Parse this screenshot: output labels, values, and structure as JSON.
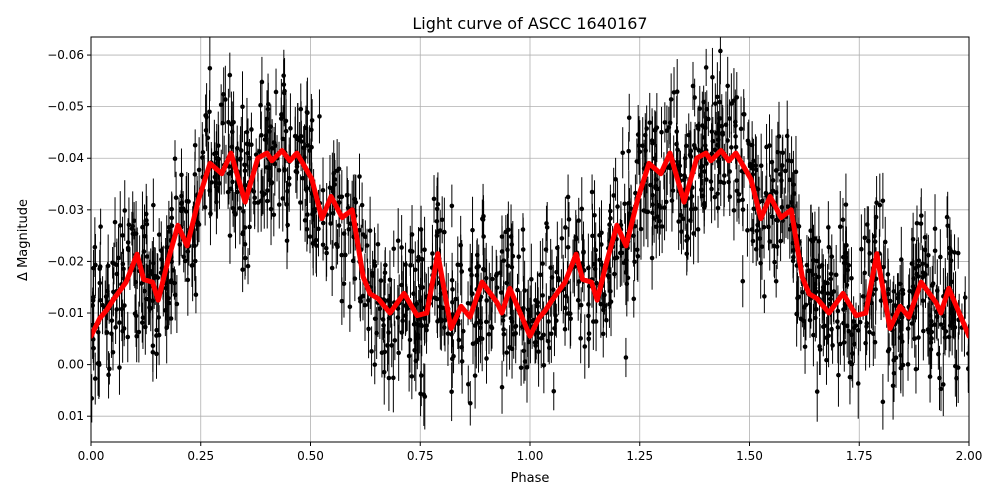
{
  "chart_data": {
    "type": "scatter",
    "title": "Light curve of ASCC 1640167",
    "xlabel": "Phase",
    "ylabel": "Δ Magnitude",
    "xlim": [
      0,
      2
    ],
    "ylim": [
      0.015,
      -0.0635
    ],
    "y_inverted": true,
    "grid": true,
    "x_ticks": [
      "0.00",
      "0.25",
      "0.50",
      "0.75",
      "1.00",
      "1.25",
      "1.50",
      "1.75",
      "2.00"
    ],
    "y_ticks": [
      "−0.06",
      "−0.05",
      "−0.04",
      "−0.03",
      "−0.02",
      "−0.01",
      "0.00",
      "0.01"
    ],
    "x_tick_values": [
      0,
      0.25,
      0.5,
      0.75,
      1,
      1.25,
      1.5,
      1.75,
      2
    ],
    "y_tick_values": [
      -0.06,
      -0.05,
      -0.04,
      -0.03,
      -0.02,
      -0.01,
      0,
      0.01
    ],
    "series": [
      {
        "kind": "points-with-error-bars",
        "color": "#000000"
      },
      {
        "kind": "smoothed-fit-line",
        "color": "#ff0000",
        "period_repeat": 1.0,
        "x": [
          0.0,
          0.02,
          0.035,
          0.05,
          0.08,
          0.105,
          0.12,
          0.14,
          0.153,
          0.175,
          0.198,
          0.219,
          0.245,
          0.271,
          0.298,
          0.319,
          0.351,
          0.38,
          0.401,
          0.412,
          0.435,
          0.453,
          0.469,
          0.503,
          0.526,
          0.547,
          0.572,
          0.595,
          0.62,
          0.636,
          0.654,
          0.681,
          0.713,
          0.743,
          0.765,
          0.79,
          0.82,
          0.843,
          0.863,
          0.891,
          0.925,
          0.936,
          0.954,
          1.0
        ],
        "y": [
          -0.0055,
          -0.009,
          -0.0105,
          -0.0125,
          -0.016,
          -0.0214,
          -0.0165,
          -0.016,
          -0.0125,
          -0.02,
          -0.027,
          -0.023,
          -0.032,
          -0.039,
          -0.037,
          -0.041,
          -0.0315,
          -0.04,
          -0.041,
          -0.0395,
          -0.0415,
          -0.0395,
          -0.041,
          -0.036,
          -0.0283,
          -0.0326,
          -0.0285,
          -0.03,
          -0.017,
          -0.0137,
          -0.0128,
          -0.01,
          -0.0138,
          -0.0095,
          -0.01,
          -0.0215,
          -0.007,
          -0.0113,
          -0.0092,
          -0.016,
          -0.012,
          -0.01,
          -0.0148,
          -0.0055
        ]
      }
    ]
  }
}
